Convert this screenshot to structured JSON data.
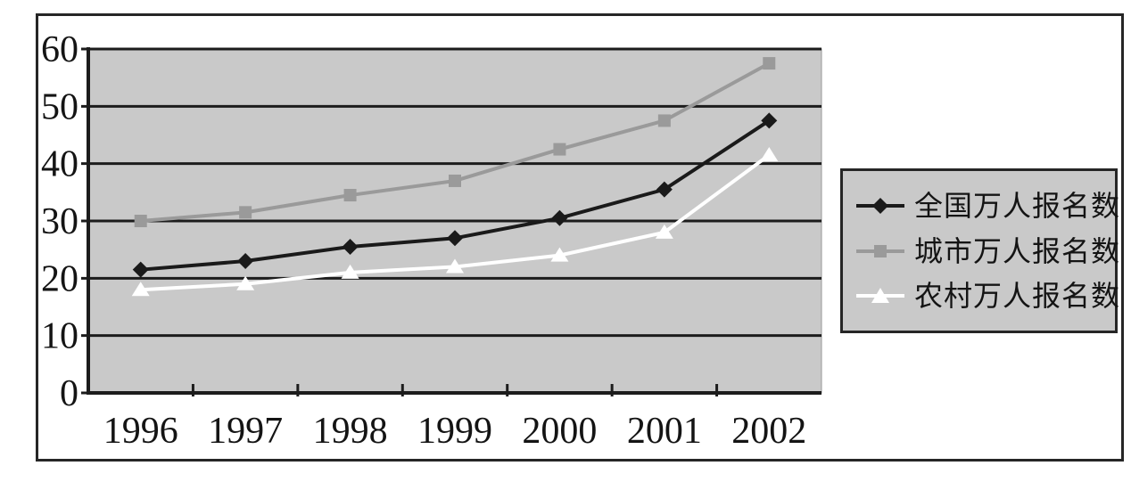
{
  "chart_data": {
    "type": "line",
    "title": "",
    "xlabel": "",
    "ylabel": "",
    "categories": [
      "1996",
      "1997",
      "1998",
      "1999",
      "2000",
      "2001",
      "2002"
    ],
    "yticks": [
      0,
      10,
      20,
      30,
      40,
      50,
      60
    ],
    "ylim": [
      0,
      60
    ],
    "grid": true,
    "legend_position": "right",
    "plot_background": "#c9c9c9",
    "gridline_color": "#1c1c1c",
    "axis_color": "#1c1c1c",
    "series": [
      {
        "name": "全国万人报名数",
        "marker": "diamond",
        "color": "#1a1a1a",
        "values": [
          21.5,
          23,
          25.5,
          27,
          30.5,
          35.5,
          47.5
        ]
      },
      {
        "name": "城市万人报名数",
        "marker": "square",
        "color": "#9a9a9a",
        "values": [
          30,
          31.5,
          34.5,
          37,
          42.5,
          47.5,
          57.5
        ]
      },
      {
        "name": "农村万人报名数",
        "marker": "triangle",
        "color": "#ffffff",
        "values": [
          18,
          19,
          21,
          22,
          24,
          28,
          41.5
        ]
      }
    ]
  }
}
